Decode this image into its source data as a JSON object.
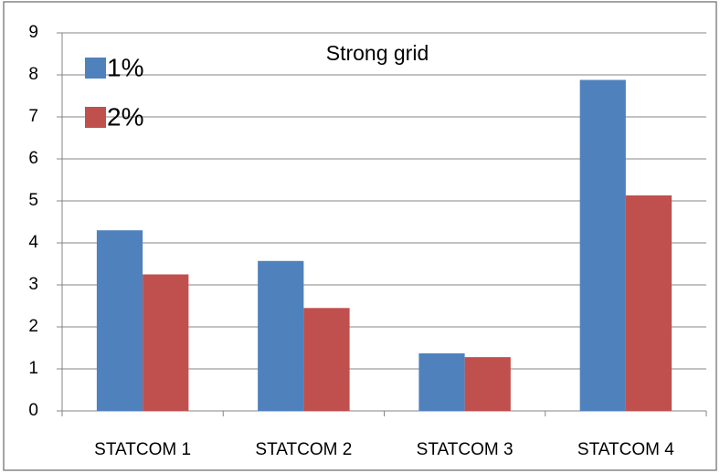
{
  "chart_data": {
    "type": "bar",
    "title": "Strong grid",
    "categories": [
      "STATCOM 1",
      "STATCOM 2",
      "STATCOM 3",
      "STATCOM 4"
    ],
    "series": [
      {
        "name": "1%",
        "color": "#4f81bd",
        "values": [
          4.3,
          3.57,
          1.37,
          7.88
        ]
      },
      {
        "name": "2%",
        "color": "#c0504d",
        "values": [
          3.25,
          2.45,
          1.28,
          5.13
        ]
      }
    ],
    "ylim": [
      0,
      9
    ],
    "yticks": [
      0,
      1,
      2,
      3,
      4,
      5,
      6,
      7,
      8,
      9
    ],
    "grid": true,
    "legend": "upper left"
  }
}
